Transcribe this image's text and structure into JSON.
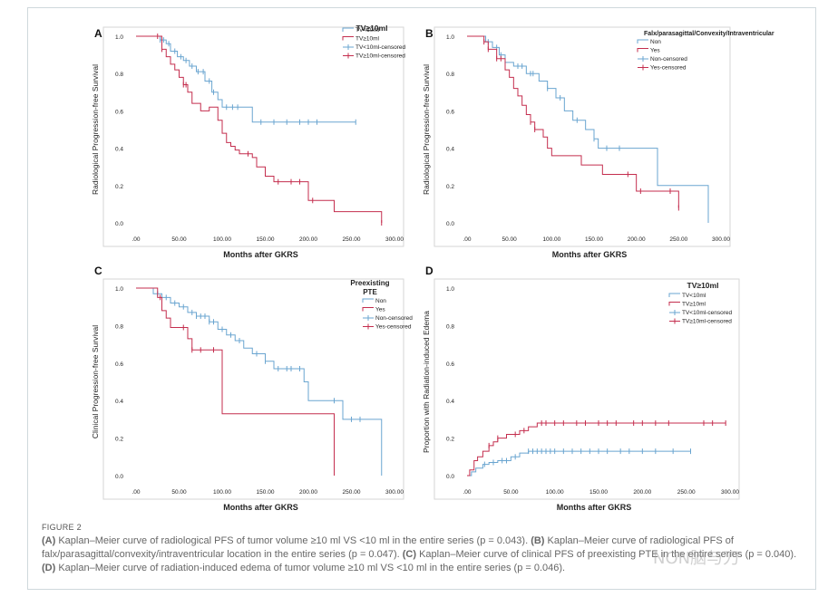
{
  "figure": {
    "label": "FIGURE 2",
    "caption_a_letter": "(A)",
    "caption_a_text": " Kaplan–Meier curve of radiological PFS of tumor volume ≥10 ml VS <10 ml in the entire series (p = 0.043). ",
    "caption_b_letter": "(B)",
    "caption_b_text": " Kaplan–Meier curve of radiological PFS of falx/parasagittal/convexity/intraventricular location in the entire series (p = 0.047). ",
    "caption_c_letter": "(C)",
    "caption_c_text": " Kaplan–Meier curve of clinical PFS of preexisting PTE in the entire series (p = 0.040). ",
    "caption_d_letter": "(D)",
    "caption_d_text": " Kaplan–Meier curve of radiation-induced edema of tumor volume ≥10 ml VS <10 ml in the entire series (p = 0.046).",
    "watermark": "NON脑与刀"
  },
  "colors": {
    "blue": "#6aa5d0",
    "red": "#c42e4e",
    "text": "#222222"
  },
  "chart_data": [
    {
      "id": "A",
      "type": "line",
      "step": true,
      "panel_label": "A",
      "legend_title": "TV≥10ml",
      "xlabel": "Months after GKRS",
      "ylabel": "Radiological Progression-free Survival",
      "xlim": [
        0,
        300
      ],
      "ylim": [
        0,
        1.0
      ],
      "xticks": [
        ".00",
        "50.00",
        "100.00",
        "150.00",
        "200.00",
        "250.00",
        "300.00"
      ],
      "yticks": [
        "0.0",
        "0.2",
        "0.4",
        "0.6",
        "0.8",
        "1.0"
      ],
      "legend": [
        "TV<10ml",
        "TV≥10ml",
        "TV<10ml-censored",
        "TV≥10ml-censored"
      ],
      "series": [
        {
          "name": "TV<10ml",
          "color": "#6aa5d0",
          "x": [
            0,
            28,
            35,
            40,
            48,
            55,
            62,
            70,
            80,
            88,
            95,
            100,
            110,
            135,
            255
          ],
          "y": [
            1.0,
            0.98,
            0.96,
            0.92,
            0.89,
            0.87,
            0.84,
            0.81,
            0.76,
            0.7,
            0.66,
            0.62,
            0.62,
            0.54,
            0.54
          ],
          "censored_x": [
            28,
            32,
            38,
            45,
            52,
            58,
            65,
            72,
            78,
            85,
            90,
            105,
            112,
            118,
            145,
            160,
            175,
            190,
            200,
            210,
            255
          ]
        },
        {
          "name": "TV≥10ml",
          "color": "#c42e4e",
          "x": [
            0,
            30,
            35,
            40,
            45,
            50,
            55,
            60,
            65,
            75,
            85,
            95,
            100,
            105,
            110,
            115,
            120,
            135,
            140,
            150,
            160,
            200,
            230,
            285
          ],
          "y": [
            1.0,
            0.93,
            0.89,
            0.85,
            0.82,
            0.78,
            0.74,
            0.7,
            0.64,
            0.6,
            0.62,
            0.55,
            0.48,
            0.43,
            0.41,
            0.39,
            0.37,
            0.35,
            0.3,
            0.25,
            0.22,
            0.12,
            0.06,
            0.0
          ],
          "censored_x": [
            25,
            30,
            55,
            58,
            130,
            165,
            180,
            190,
            205,
            285
          ]
        }
      ]
    },
    {
      "id": "B",
      "type": "line",
      "step": true,
      "panel_label": "B",
      "legend_title": "Falx/parasagittal/Convexity/Intraventricular",
      "xlabel": "Months after GKRS",
      "ylabel": "Radiological Progression-free Survival",
      "xlim": [
        0,
        300
      ],
      "ylim": [
        0,
        1.0
      ],
      "xticks": [
        ".00",
        "50.00",
        "100.00",
        "150.00",
        "200.00",
        "250.00",
        "300.00"
      ],
      "yticks": [
        "0.0",
        "0.2",
        "0.4",
        "0.6",
        "0.8",
        "1.0"
      ],
      "legend": [
        "Non",
        "Yes",
        "Non-censored",
        "Yes-censored"
      ],
      "series": [
        {
          "name": "Non",
          "color": "#6aa5d0",
          "x": [
            0,
            22,
            30,
            38,
            45,
            55,
            70,
            85,
            95,
            105,
            115,
            125,
            140,
            150,
            155,
            165,
            225,
            285
          ],
          "y": [
            1.0,
            0.97,
            0.94,
            0.9,
            0.86,
            0.84,
            0.8,
            0.76,
            0.72,
            0.67,
            0.6,
            0.55,
            0.5,
            0.45,
            0.4,
            0.4,
            0.2,
            0.0
          ],
          "censored_x": [
            25,
            35,
            40,
            60,
            65,
            75,
            78,
            95,
            110,
            130,
            150,
            165,
            180
          ]
        },
        {
          "name": "Yes",
          "color": "#c42e4e",
          "x": [
            0,
            20,
            25,
            35,
            45,
            50,
            55,
            60,
            65,
            70,
            75,
            80,
            90,
            95,
            100,
            110,
            135,
            160,
            200,
            250
          ],
          "y": [
            1.0,
            0.97,
            0.93,
            0.88,
            0.82,
            0.78,
            0.72,
            0.68,
            0.63,
            0.58,
            0.54,
            0.5,
            0.46,
            0.4,
            0.36,
            0.36,
            0.31,
            0.26,
            0.17,
            0.08
          ],
          "censored_x": [
            20,
            25,
            35,
            40,
            75,
            80,
            190,
            205,
            240,
            250
          ]
        }
      ]
    },
    {
      "id": "C",
      "type": "line",
      "step": true,
      "panel_label": "C",
      "legend_title": "Preexisting PTE",
      "xlabel": "Months after GKRS",
      "ylabel": "Clinical Progression-free Survival",
      "xlim": [
        0,
        300
      ],
      "ylim": [
        0,
        1.0
      ],
      "xticks": [
        ".00",
        "50.00",
        "100.00",
        "150.00",
        "200.00",
        "250.00",
        "300.00"
      ],
      "yticks": [
        "0.0",
        "0.2",
        "0.4",
        "0.6",
        "0.8",
        "1.0"
      ],
      "legend": [
        "Non",
        "Yes",
        "Non-censored",
        "Yes-censored"
      ],
      "series": [
        {
          "name": "Non",
          "color": "#6aa5d0",
          "x": [
            0,
            20,
            30,
            40,
            50,
            60,
            70,
            85,
            95,
            105,
            115,
            125,
            135,
            150,
            160,
            175,
            195,
            200,
            240,
            285
          ],
          "y": [
            1.0,
            0.97,
            0.95,
            0.92,
            0.9,
            0.87,
            0.85,
            0.82,
            0.78,
            0.75,
            0.72,
            0.68,
            0.65,
            0.61,
            0.57,
            0.57,
            0.5,
            0.4,
            0.3,
            0.0
          ],
          "censored_x": [
            25,
            35,
            45,
            55,
            65,
            70,
            75,
            80,
            85,
            90,
            100,
            110,
            120,
            140,
            150,
            165,
            175,
            180,
            190,
            230,
            250,
            260
          ]
        },
        {
          "name": "Yes",
          "color": "#c42e4e",
          "x": [
            0,
            25,
            30,
            35,
            40,
            60,
            65,
            100,
            230
          ],
          "y": [
            1.0,
            0.95,
            0.88,
            0.84,
            0.79,
            0.73,
            0.67,
            0.33,
            0.0
          ],
          "censored_x": [
            28,
            55,
            65,
            75,
            90
          ]
        }
      ]
    },
    {
      "id": "D",
      "type": "line",
      "step": true,
      "panel_label": "D",
      "legend_title": "TV≥10ml",
      "xlabel": "Months after GKRS",
      "ylabel": "Proportion with Radiation-induced Edema",
      "xlim": [
        0,
        300
      ],
      "ylim": [
        0,
        1.0
      ],
      "xticks": [
        ".00",
        "50.00",
        "100.00",
        "150.00",
        "200.00",
        "250.00",
        "300.00"
      ],
      "yticks": [
        "0.0",
        "0.2",
        "0.4",
        "0.6",
        "0.8",
        "1.0"
      ],
      "legend": [
        "TV<10ml",
        "TV≥10ml",
        "TV<10ml-censored",
        "TV≥10ml-censored"
      ],
      "series": [
        {
          "name": "TV<10ml",
          "color": "#6aa5d0",
          "x": [
            0,
            5,
            10,
            18,
            25,
            35,
            50,
            60,
            70,
            255
          ],
          "y": [
            0.0,
            0.02,
            0.04,
            0.06,
            0.07,
            0.08,
            0.1,
            0.12,
            0.13,
            0.13
          ],
          "censored_x": [
            20,
            30,
            40,
            45,
            55,
            70,
            75,
            80,
            85,
            90,
            95,
            100,
            110,
            120,
            130,
            140,
            150,
            160,
            175,
            185,
            200,
            215,
            235,
            255
          ]
        },
        {
          "name": "TV≥10ml",
          "color": "#c42e4e",
          "x": [
            0,
            3,
            8,
            12,
            18,
            25,
            30,
            35,
            45,
            60,
            70,
            80,
            295
          ],
          "y": [
            0.0,
            0.03,
            0.08,
            0.1,
            0.13,
            0.16,
            0.18,
            0.2,
            0.22,
            0.24,
            0.26,
            0.28,
            0.28
          ],
          "censored_x": [
            25,
            35,
            55,
            65,
            85,
            90,
            100,
            110,
            125,
            135,
            150,
            160,
            170,
            190,
            200,
            215,
            230,
            270,
            280,
            295
          ]
        }
      ]
    }
  ]
}
